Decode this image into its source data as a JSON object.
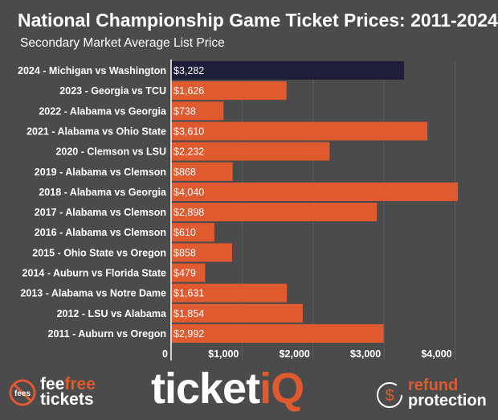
{
  "chart_data": {
    "type": "bar",
    "orientation": "horizontal",
    "title": "National Championship Game Ticket Prices: 2011-2024",
    "subtitle": "Secondary Market Average List Price",
    "categories": [
      "2024 - Michigan vs Washington",
      "2023 - Georgia vs TCU",
      "2022 - Alabama vs Georgia",
      "2021 - Alabama vs Ohio State",
      "2020 - Clemson vs LSU",
      "2019 - Alabama vs Clemson",
      "2018 - Alabama vs Georgia",
      "2017 - Alabama vs Clemson",
      "2016 - Alabama vs Clemson",
      "2015 - Ohio State vs Oregon",
      "2014 - Auburn vs Florida State",
      "2013 - Alabama vs Notre Dame",
      "2012 - LSU vs Alabama",
      "2011 - Auburn vs Oregon"
    ],
    "values": [
      3282,
      1626,
      738,
      3610,
      2232,
      868,
      4040,
      2898,
      610,
      858,
      479,
      1631,
      1854,
      2992
    ],
    "value_labels": [
      "$3,282",
      "$1,626",
      "$738",
      "$3,610",
      "$2,232",
      "$868",
      "$4,040",
      "$2,898",
      "$610",
      "$858",
      "$479",
      "$1,631",
      "$1,854",
      "$2,992"
    ],
    "xticks": [
      0,
      1000,
      2000,
      3000,
      4000
    ],
    "xtick_labels": [
      "0",
      "$1,000",
      "$2,000",
      "$3,000",
      "$4,000"
    ],
    "xlim": [
      0,
      4500
    ],
    "grid": true,
    "colors": {
      "highlight": "#1e1d3a",
      "bar": "#e05a30",
      "background": "#4b4b4b"
    }
  },
  "footer": {
    "feefree": {
      "word1": "fee",
      "word2": "free",
      "word3": "tickets",
      "badge": "fees"
    },
    "ticketiq": {
      "part1": "ticket",
      "part2": "iQ"
    },
    "refund": {
      "word1": "refund",
      "word2": "protection",
      "symbol": "$"
    }
  }
}
